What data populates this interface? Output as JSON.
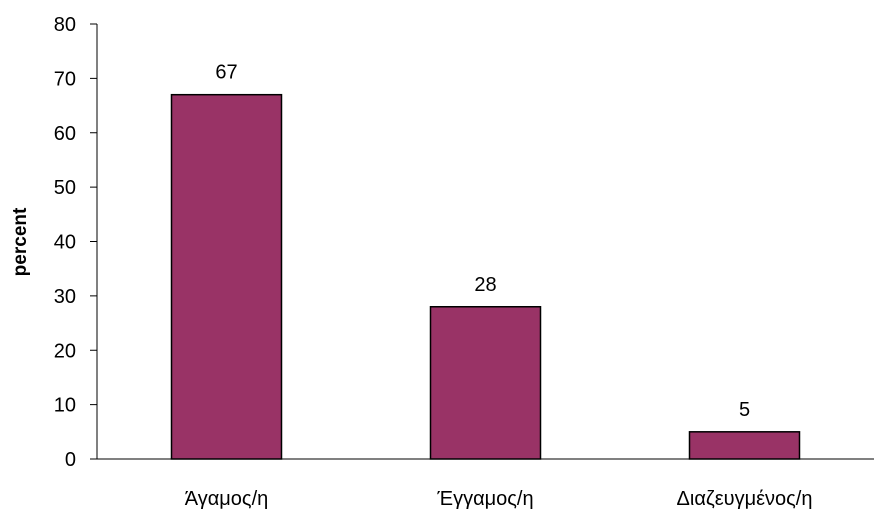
{
  "chart_data": {
    "type": "bar",
    "title": "",
    "xlabel": "",
    "ylabel": "percent",
    "categories": [
      "Άγαμος/η",
      "Έγγαμος/η",
      "Διαζευγμένος/η"
    ],
    "values": [
      67,
      28,
      5
    ],
    "data_labels": [
      "67",
      "28",
      "5"
    ],
    "ylim": [
      0,
      80
    ],
    "yticks": [
      0,
      10,
      20,
      30,
      40,
      50,
      60,
      70,
      80
    ],
    "grid": false,
    "legend": "none",
    "bar_color": "#993366",
    "bar_edge_color": "#000000"
  }
}
